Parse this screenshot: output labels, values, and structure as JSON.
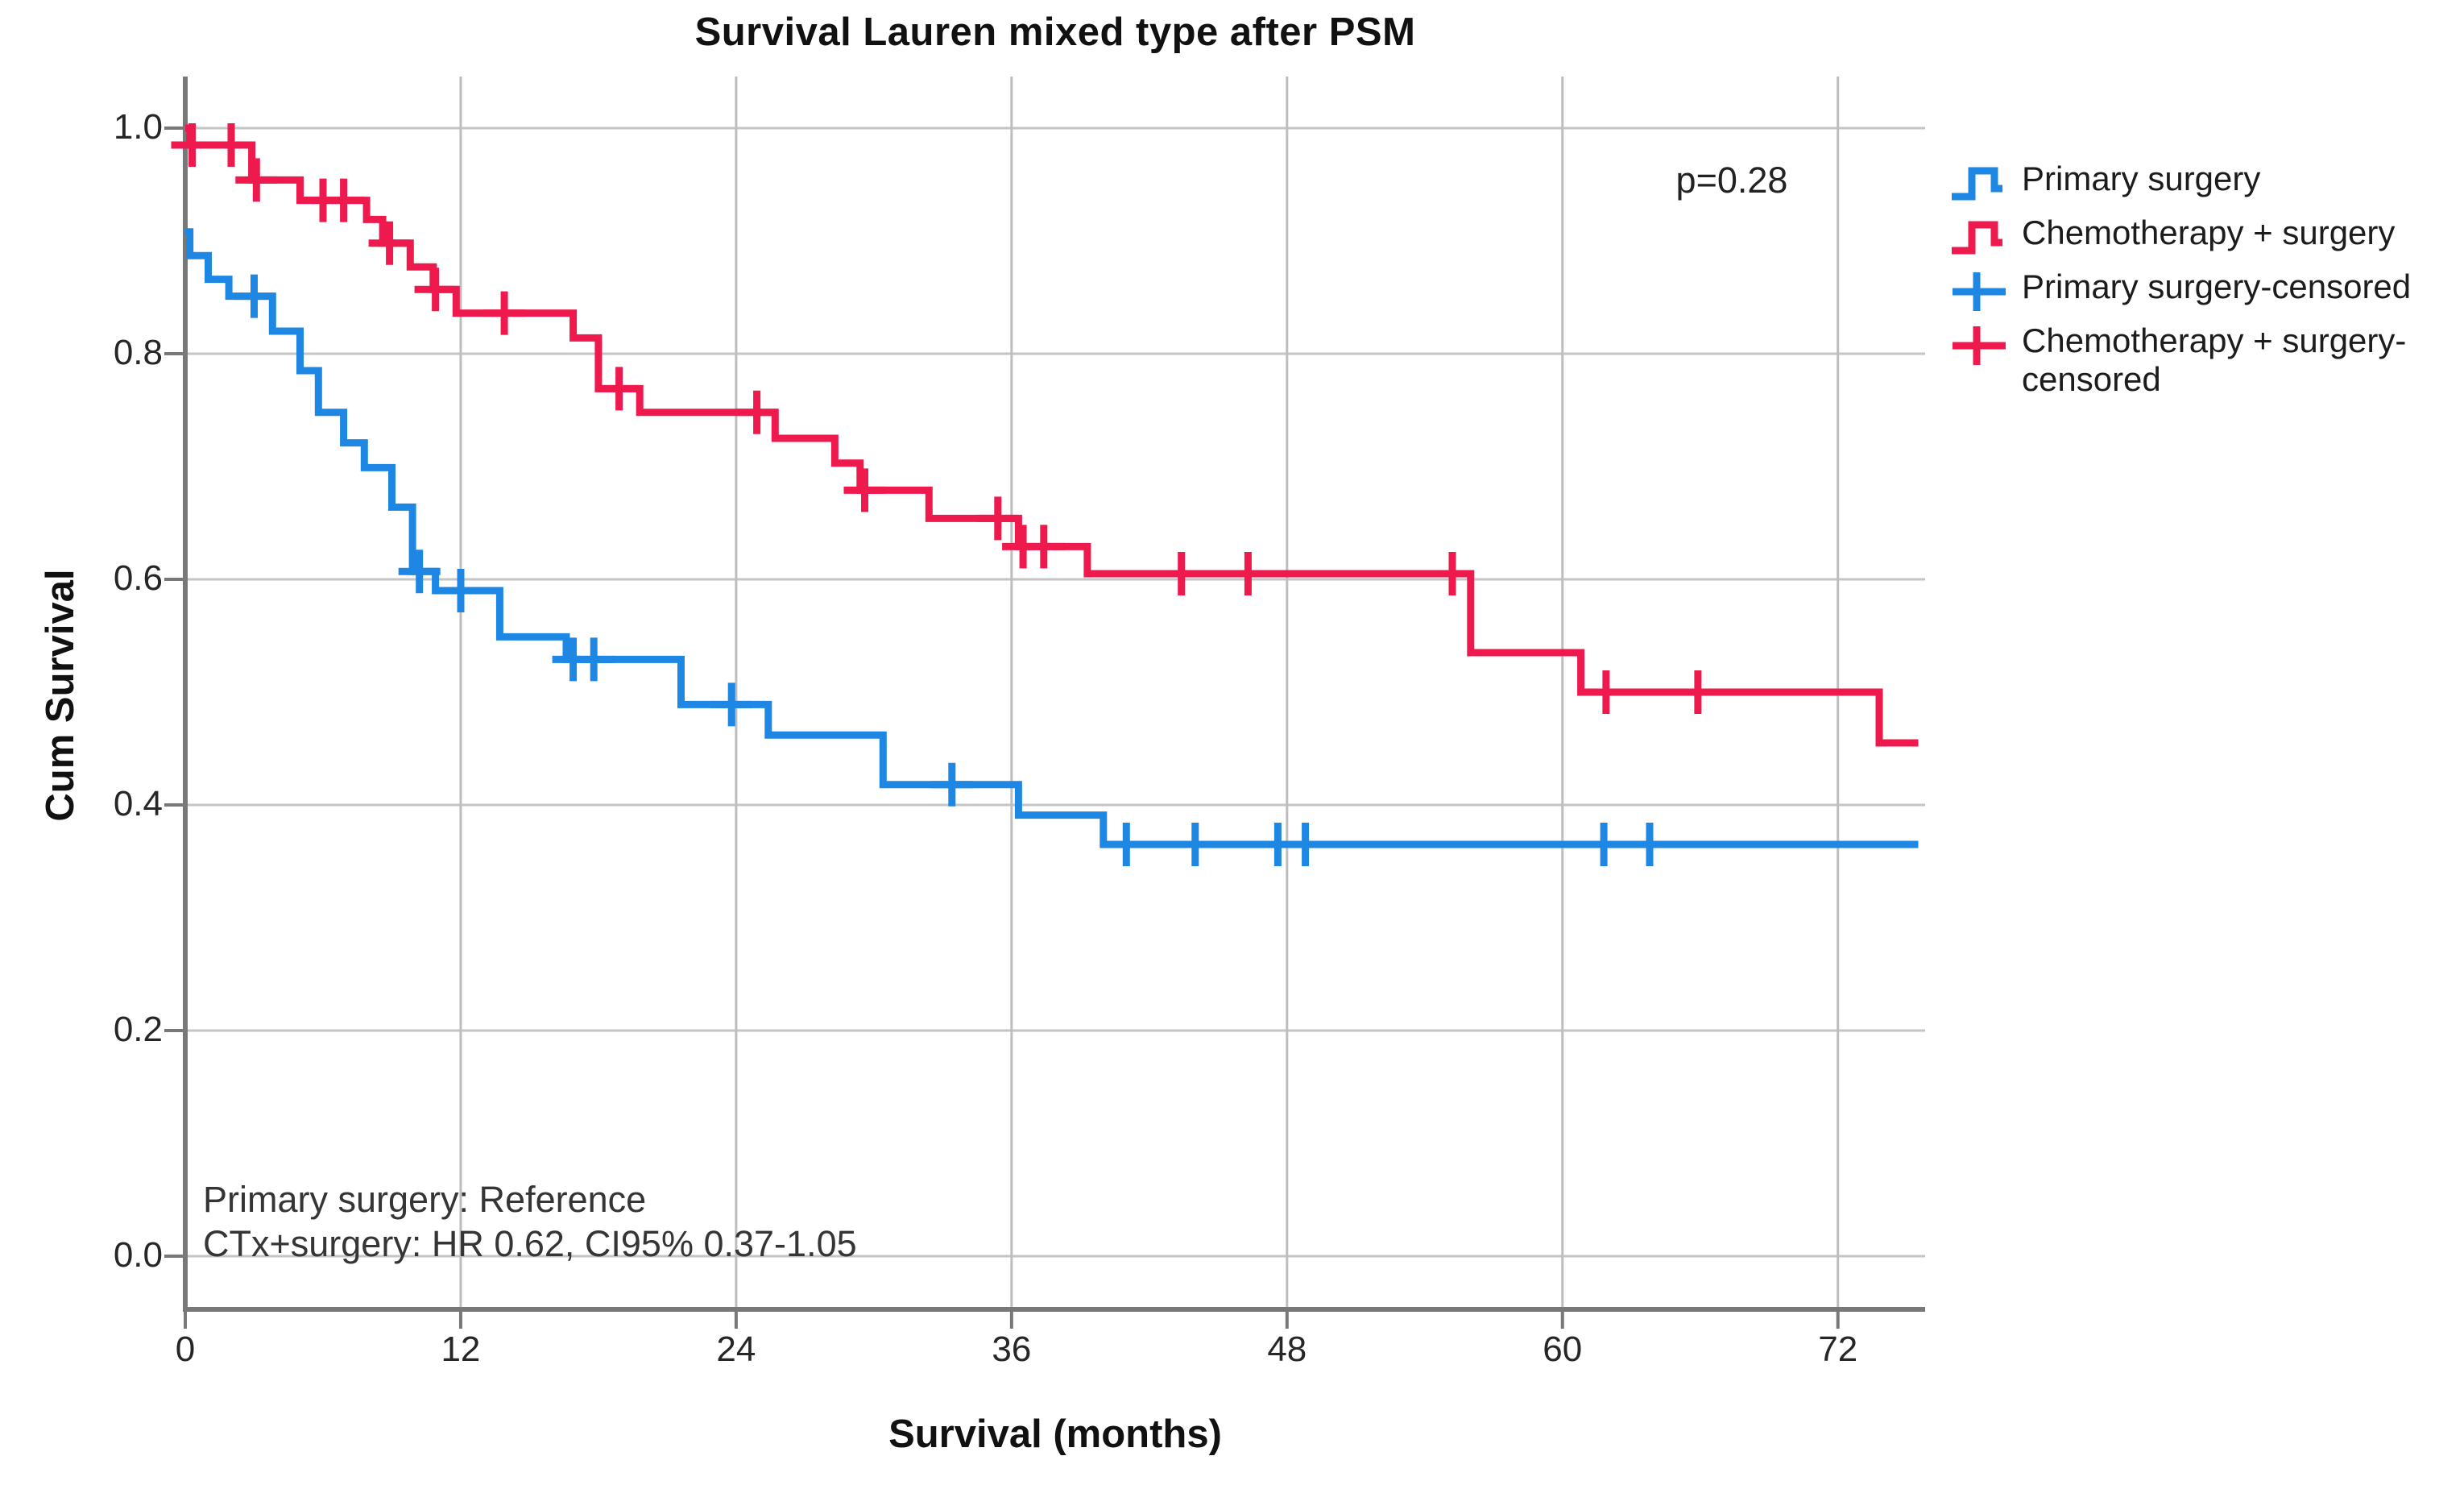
{
  "chart_data": {
    "type": "line",
    "subtype": "kaplan-meier-step",
    "title": "Survival Lauren mixed type after PSM",
    "xlabel": "Survival (months)",
    "ylabel": "Cum Survival",
    "xlim": [
      0,
      75.8
    ],
    "ylim": [
      0.0,
      1.0
    ],
    "xticks": [
      0,
      12,
      24,
      36,
      48,
      60,
      72
    ],
    "yticks": [
      {
        "label": "0.0",
        "value": 0.0
      },
      {
        "label": "0.2",
        "value": 0.2
      },
      {
        "label": "0.4",
        "value": 0.4
      },
      {
        "label": "0.6",
        "value": 0.6
      },
      {
        "label": "0.8",
        "value": 0.8
      },
      {
        "label": "1.0",
        "value": 1.0
      }
    ],
    "grid": true,
    "legend_position": "right",
    "p_value": "p=0.28",
    "annotation_line1": "Primary surgery: Reference",
    "annotation_line2": "CTx+surgery: HR 0.62, CI95% 0.37-1.05",
    "series": [
      {
        "name": "Primary surgery",
        "color": "#1E87E4",
        "end_x": 75.5,
        "steps": [
          [
            0,
            0.908
          ],
          [
            0.2,
            0.887
          ],
          [
            1.0,
            0.866
          ],
          [
            1.9,
            0.851
          ],
          [
            3.8,
            0.82
          ],
          [
            5.0,
            0.785
          ],
          [
            5.8,
            0.748
          ],
          [
            6.9,
            0.721
          ],
          [
            7.8,
            0.699
          ],
          [
            9.0,
            0.664
          ],
          [
            9.9,
            0.607
          ],
          [
            10.9,
            0.59
          ],
          [
            13.7,
            0.549
          ],
          [
            16.6,
            0.529
          ],
          [
            21.6,
            0.489
          ],
          [
            25.4,
            0.462
          ],
          [
            30.4,
            0.418
          ],
          [
            36.3,
            0.391
          ],
          [
            40.0,
            0.365
          ]
        ],
        "censored": [
          [
            3.0,
            0.851
          ],
          [
            10.2,
            0.607
          ],
          [
            12.0,
            0.59
          ],
          [
            16.9,
            0.529
          ],
          [
            17.8,
            0.529
          ],
          [
            23.8,
            0.489
          ],
          [
            33.4,
            0.418
          ],
          [
            41.0,
            0.365
          ],
          [
            44.0,
            0.365
          ],
          [
            47.6,
            0.365
          ],
          [
            48.8,
            0.365
          ],
          [
            61.8,
            0.365
          ],
          [
            63.8,
            0.365
          ]
        ]
      },
      {
        "name": "Chemotherapy + surgery",
        "color": "#EE1A4D",
        "end_x": 75.5,
        "steps": [
          [
            0,
            1.0
          ],
          [
            0.2,
            0.985
          ],
          [
            2.9,
            0.954
          ],
          [
            5.0,
            0.936
          ],
          [
            7.9,
            0.919
          ],
          [
            8.6,
            0.898
          ],
          [
            9.8,
            0.877
          ],
          [
            10.8,
            0.857
          ],
          [
            11.8,
            0.836
          ],
          [
            16.9,
            0.814
          ],
          [
            18.0,
            0.769
          ],
          [
            19.8,
            0.748
          ],
          [
            25.7,
            0.725
          ],
          [
            28.3,
            0.703
          ],
          [
            29.4,
            0.679
          ],
          [
            32.4,
            0.654
          ],
          [
            36.3,
            0.629
          ],
          [
            39.3,
            0.605
          ],
          [
            56.0,
            0.535
          ],
          [
            60.8,
            0.5
          ],
          [
            73.8,
            0.455
          ]
        ],
        "censored": [
          [
            0.3,
            0.985
          ],
          [
            2.0,
            0.985
          ],
          [
            3.1,
            0.954
          ],
          [
            6.0,
            0.936
          ],
          [
            6.9,
            0.936
          ],
          [
            8.9,
            0.898
          ],
          [
            10.9,
            0.857
          ],
          [
            13.9,
            0.836
          ],
          [
            18.9,
            0.769
          ],
          [
            24.9,
            0.748
          ],
          [
            29.6,
            0.679
          ],
          [
            35.4,
            0.654
          ],
          [
            36.5,
            0.629
          ],
          [
            37.4,
            0.629
          ],
          [
            43.4,
            0.605
          ],
          [
            46.3,
            0.605
          ],
          [
            55.2,
            0.605
          ],
          [
            61.9,
            0.5
          ],
          [
            65.9,
            0.5
          ]
        ]
      }
    ],
    "legend": [
      {
        "label": "Primary surgery",
        "symbol": "step",
        "color": "#1E87E4"
      },
      {
        "label": "Chemotherapy + surgery",
        "symbol": "step",
        "color": "#EE1A4D"
      },
      {
        "label": "Primary surgery-censored",
        "symbol": "plus",
        "color": "#1E87E4"
      },
      {
        "label": "Chemotherapy + surgery-censored",
        "symbol": "plus",
        "color": "#EE1A4D"
      }
    ],
    "style_colors": {
      "gridline": "#C5C5C5",
      "axis_frame": "#787878",
      "background": "#FFFFFF"
    }
  }
}
